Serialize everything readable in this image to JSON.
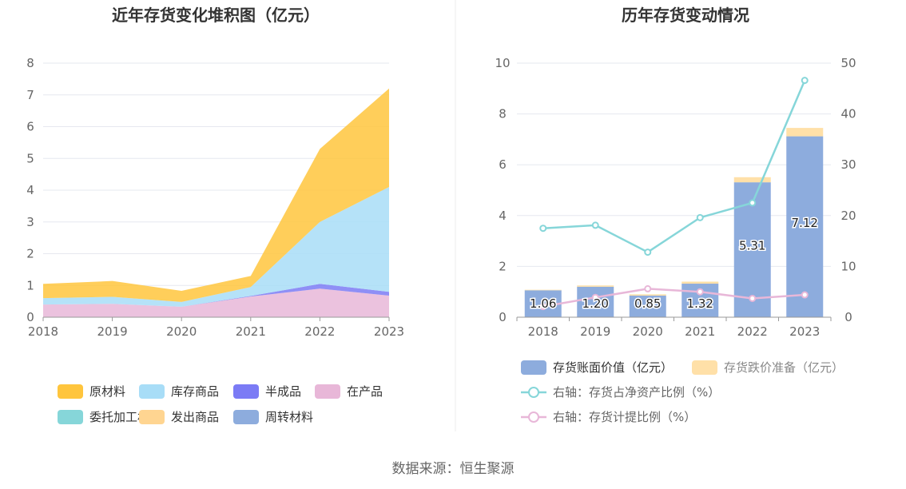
{
  "source_label": "数据来源：恒生聚源",
  "chart_data": [
    {
      "type": "area",
      "title": "近年存货变化堆积图（亿元）",
      "x": [
        "2018",
        "2019",
        "2020",
        "2021",
        "2022",
        "2023"
      ],
      "ylim": [
        0,
        8
      ],
      "yticks": [
        "0",
        "1",
        "2",
        "3",
        "4",
        "5",
        "6",
        "7",
        "8"
      ],
      "grid": true,
      "legend_placement": "bottom",
      "series": [
        {
          "name": "原材料",
          "color": "#FFC53D",
          "values": [
            0.45,
            0.5,
            0.35,
            0.35,
            2.3,
            3.1
          ]
        },
        {
          "name": "库存商品",
          "color": "#A8DDF7",
          "values": [
            0.2,
            0.22,
            0.15,
            0.28,
            1.95,
            3.3
          ]
        },
        {
          "name": "半成品",
          "color": "#7B7BF5",
          "values": [
            0.0,
            0.0,
            0.0,
            0.02,
            0.15,
            0.12
          ]
        },
        {
          "name": "在产品",
          "color": "#E8B7D8",
          "values": [
            0.4,
            0.42,
            0.33,
            0.65,
            0.9,
            0.68
          ]
        },
        {
          "name": "委托加工材料",
          "color": "#86D6D9",
          "values": [
            0,
            0,
            0,
            0,
            0,
            0
          ]
        },
        {
          "name": "发出商品",
          "color": "#FFD591",
          "values": [
            0,
            0,
            0,
            0,
            0,
            0
          ]
        },
        {
          "name": "周转材料",
          "color": "#8DACDD",
          "values": [
            0,
            0,
            0,
            0,
            0,
            0
          ]
        }
      ]
    },
    {
      "type": "bar",
      "title": "历年存货变动情况",
      "categories": [
        "2018",
        "2019",
        "2020",
        "2021",
        "2022",
        "2023"
      ],
      "ylim": [
        0,
        10
      ],
      "y2lim": [
        0,
        50
      ],
      "yticks": [
        "0",
        "2",
        "4",
        "6",
        "8",
        "10"
      ],
      "y2ticks": [
        "0",
        "10",
        "20",
        "30",
        "40",
        "50"
      ],
      "grid": true,
      "legend_placement": "bottom",
      "series": [
        {
          "name": "存货账面价值（亿元）",
          "kind": "bar",
          "color": "#8DACDD",
          "values": [
            1.06,
            1.2,
            0.85,
            1.32,
            5.31,
            7.12
          ],
          "labels": [
            "1.06",
            "1.20",
            "0.85",
            "1.32",
            "5.31",
            "7.12"
          ]
        },
        {
          "name": "存货跌价准备（亿元）",
          "kind": "bar",
          "color": "#FFE0A8",
          "values": [
            0.02,
            0.05,
            0.05,
            0.08,
            0.2,
            0.33
          ]
        },
        {
          "name": "右轴：存货占净资产比例（%）",
          "kind": "line",
          "axis": "right",
          "color": "#86D6D9",
          "values": [
            17.5,
            18.1,
            12.8,
            19.6,
            22.5,
            46.6
          ]
        },
        {
          "name": "右轴：存货计提比例（%）",
          "kind": "line",
          "axis": "right",
          "color": "#E8B7D8",
          "values": [
            2.1,
            3.9,
            5.6,
            5.0,
            3.7,
            4.4
          ]
        }
      ]
    }
  ]
}
